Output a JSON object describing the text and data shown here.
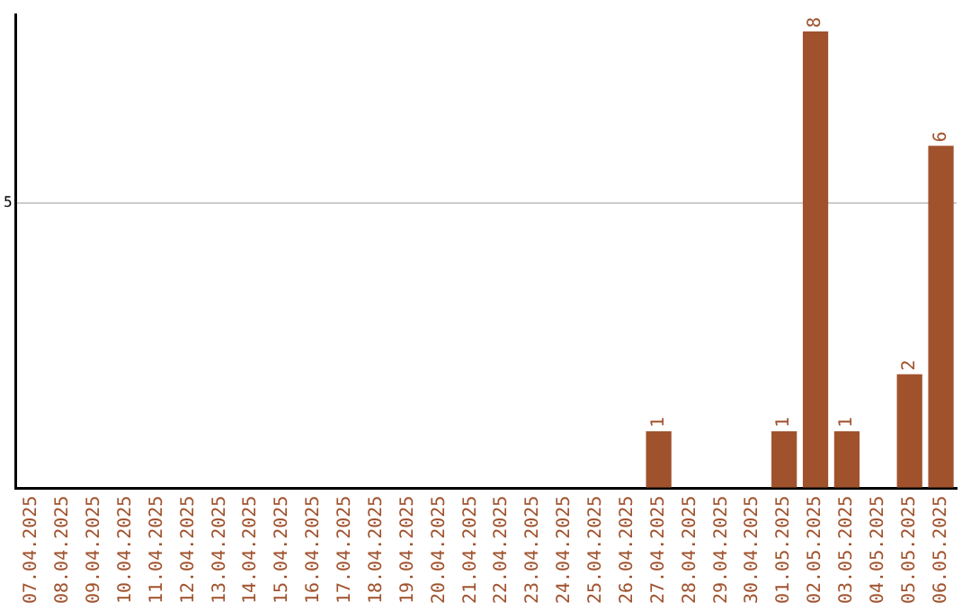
{
  "chart_data": {
    "type": "bar",
    "categories": [
      "07.04.2025",
      "08.04.2025",
      "09.04.2025",
      "10.04.2025",
      "11.04.2025",
      "12.04.2025",
      "13.04.2025",
      "14.04.2025",
      "15.04.2025",
      "16.04.2025",
      "17.04.2025",
      "18.04.2025",
      "19.04.2025",
      "20.04.2025",
      "21.04.2025",
      "22.04.2025",
      "23.04.2025",
      "24.04.2025",
      "25.04.2025",
      "26.04.2025",
      "27.04.2025",
      "28.04.2025",
      "29.04.2025",
      "30.04.2025",
      "01.05.2025",
      "02.05.2025",
      "03.05.2025",
      "04.05.2025",
      "05.05.2025",
      "06.05.2025"
    ],
    "values": [
      null,
      null,
      null,
      null,
      null,
      null,
      null,
      null,
      null,
      null,
      null,
      null,
      null,
      null,
      null,
      null,
      null,
      null,
      null,
      null,
      1,
      null,
      null,
      null,
      1,
      8,
      1,
      null,
      2,
      6
    ],
    "data_labels": true,
    "color": "#a0522d",
    "ylim": [
      0,
      8.3
    ],
    "yticks": [
      {
        "value": 0,
        "label": null
      },
      5
    ],
    "grid": "y",
    "legend": false
  }
}
